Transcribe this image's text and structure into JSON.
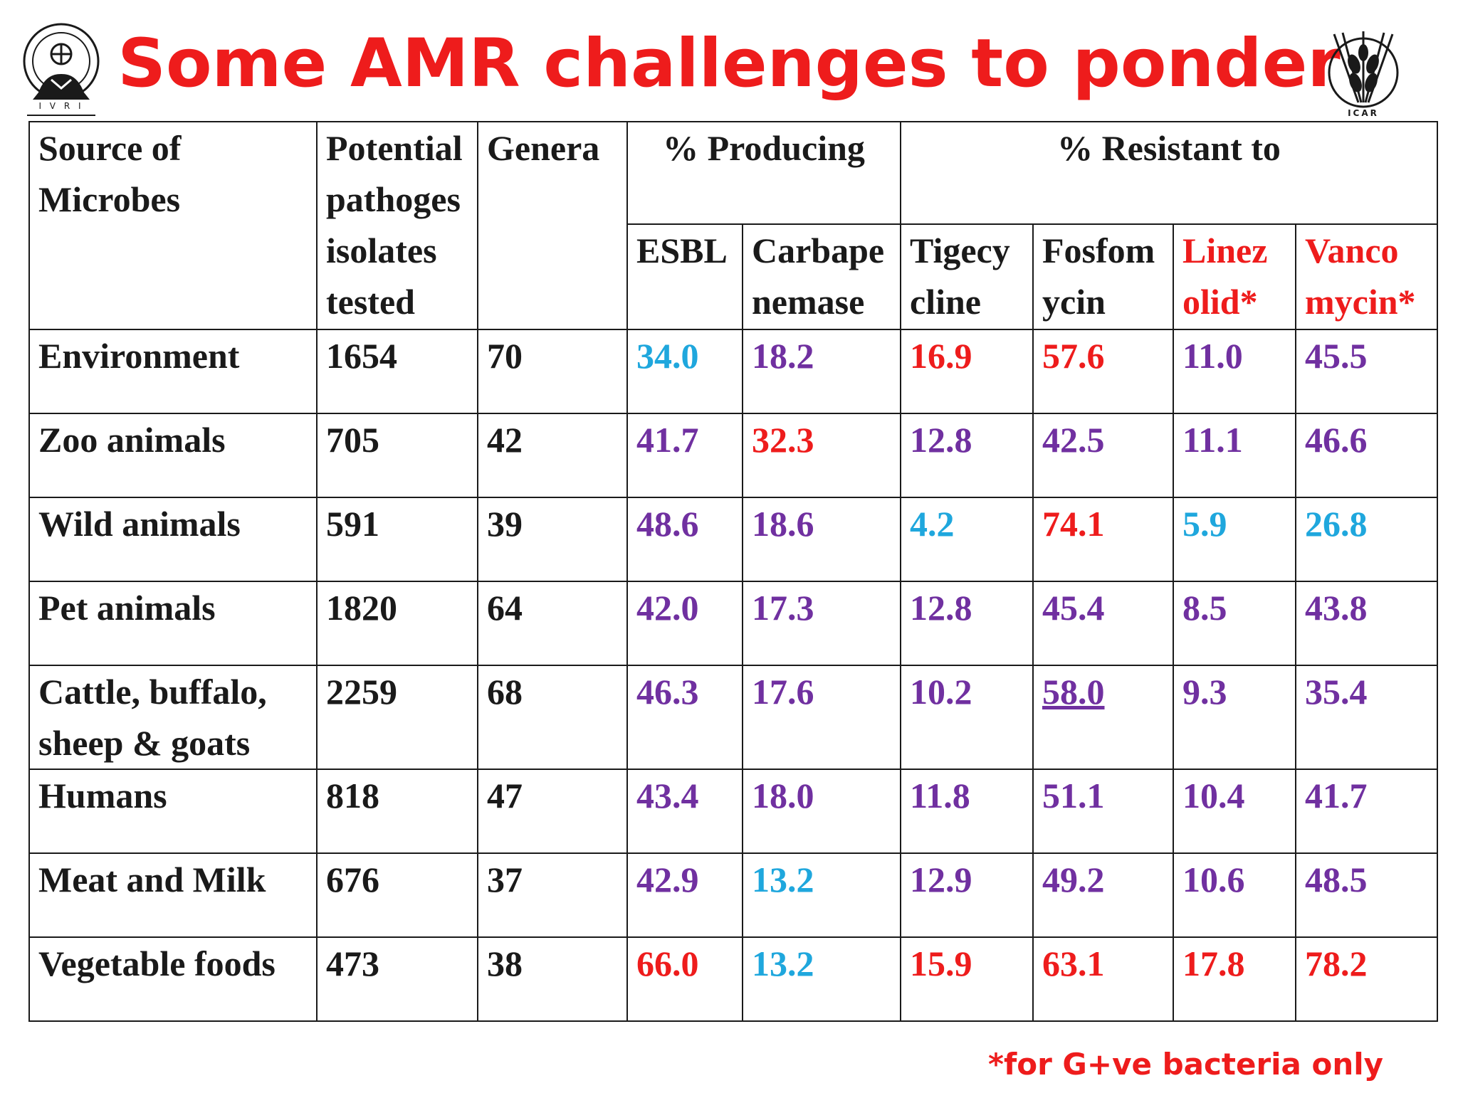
{
  "title": "Some AMR challenges to ponder",
  "colors": {
    "title": "#ee1c1c",
    "red": "#ee1c1c",
    "purple": "#7030a0",
    "cyan": "#1fa7dd",
    "black": "#1a1a1a"
  },
  "logos": {
    "left": {
      "icon": "ivri-emblem-icon",
      "text": "I V R I"
    },
    "right": {
      "icon": "icar-wheat-emblem-icon",
      "text": "ICAR"
    }
  },
  "table": {
    "header": {
      "source": "Source of Microbes",
      "potential": "Potential pathoges isolates tested",
      "genera": "Genera",
      "producing": "% Producing",
      "resistant": "% Resistant to",
      "esbl": "ESBL",
      "carbapenemase": "Carbape nemase",
      "tigecycline": "Tigecy cline",
      "fosfomycin": "Fosfom ycin",
      "linezolid": "Linez olid*",
      "vancomycin": "Vanco mycin*"
    },
    "rows": [
      {
        "source": "Environment",
        "potential": "1654",
        "genera": "70",
        "esbl": "34.0",
        "carbapenemase": "18.2",
        "tigecycline": "16.9",
        "fosfomycin": "57.6",
        "linezolid": "11.0",
        "vancomycin": "45.5",
        "colors": [
          "cyan",
          "purple",
          "red",
          "red",
          "purple",
          "purple"
        ]
      },
      {
        "source": "Zoo animals",
        "potential": "705",
        "genera": "42",
        "esbl": "41.7",
        "carbapenemase": "32.3",
        "tigecycline": "12.8",
        "fosfomycin": "42.5",
        "linezolid": "11.1",
        "vancomycin": "46.6",
        "colors": [
          "purple",
          "red",
          "purple",
          "purple",
          "purple",
          "purple"
        ]
      },
      {
        "source": "Wild animals",
        "potential": "591",
        "genera": "39",
        "esbl": "48.6",
        "carbapenemase": "18.6",
        "tigecycline": "4.2",
        "fosfomycin": "74.1",
        "linezolid": "5.9",
        "vancomycin": "26.8",
        "colors": [
          "purple",
          "purple",
          "cyan",
          "red",
          "cyan",
          "cyan"
        ]
      },
      {
        "source": "Pet animals",
        "potential": "1820",
        "genera": "64",
        "esbl": "42.0",
        "carbapenemase": "17.3",
        "tigecycline": "12.8",
        "fosfomycin": "45.4",
        "linezolid": "8.5",
        "vancomycin": "43.8",
        "colors": [
          "purple",
          "purple",
          "purple",
          "purple",
          "purple",
          "purple"
        ]
      },
      {
        "source": "Cattle, buffalo, sheep & goats",
        "potential": "2259",
        "genera": "68",
        "esbl": "46.3",
        "carbapenemase": "17.6",
        "tigecycline": "10.2",
        "fosfomycin": "58.0",
        "linezolid": "9.3",
        "vancomycin": "35.4",
        "colors": [
          "purple",
          "purple",
          "purple",
          "purple",
          "purple",
          "purple"
        ]
      },
      {
        "source": "Humans",
        "potential": "818",
        "genera": "47",
        "esbl": "43.4",
        "carbapenemase": "18.0",
        "tigecycline": "11.8",
        "fosfomycin": "51.1",
        "linezolid": "10.4",
        "vancomycin": "41.7",
        "colors": [
          "purple",
          "purple",
          "purple",
          "purple",
          "purple",
          "purple"
        ]
      },
      {
        "source": "Meat and Milk",
        "potential": "676",
        "genera": "37",
        "esbl": "42.9",
        "carbapenemase": "13.2",
        "tigecycline": "12.9",
        "fosfomycin": "49.2",
        "linezolid": "10.6",
        "vancomycin": "48.5",
        "colors": [
          "purple",
          "cyan",
          "purple",
          "purple",
          "purple",
          "purple"
        ]
      },
      {
        "source": "Vegetable foods",
        "potential": "473",
        "genera": "38",
        "esbl": "66.0",
        "carbapenemase": "13.2",
        "tigecycline": "15.9",
        "fosfomycin": "63.1",
        "linezolid": "17.8",
        "vancomycin": "78.2",
        "colors": [
          "red",
          "cyan",
          "red",
          "red",
          "red",
          "red"
        ]
      }
    ]
  },
  "footnote": "*for G+ve bacteria only"
}
